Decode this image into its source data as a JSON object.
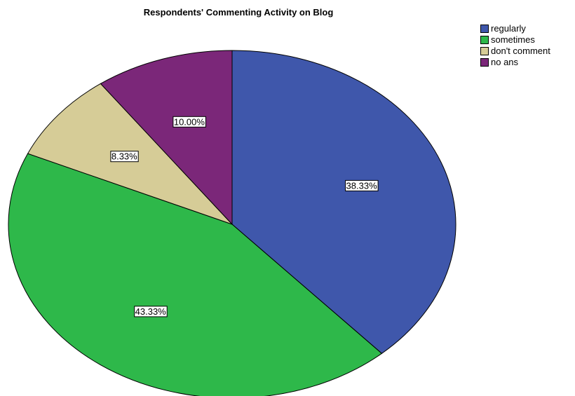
{
  "chart_data": {
    "type": "pie",
    "title": "Respondents' Commenting Activity on Blog",
    "slices": [
      {
        "label": "regularly",
        "value": 38.33,
        "display": "38.33%",
        "color": "#3f57ab"
      },
      {
        "label": "sometimes",
        "value": 43.33,
        "display": "43.33%",
        "color": "#2eb84a"
      },
      {
        "label": "don't comment",
        "value": 8.33,
        "display": "8.33%",
        "color": "#d6cc97"
      },
      {
        "label": "no ans",
        "value": 10.0,
        "display": "10.00%",
        "color": "#7b2779"
      }
    ],
    "start": "12 o'clock",
    "direction": "clockwise",
    "legend_position": "top-right"
  }
}
